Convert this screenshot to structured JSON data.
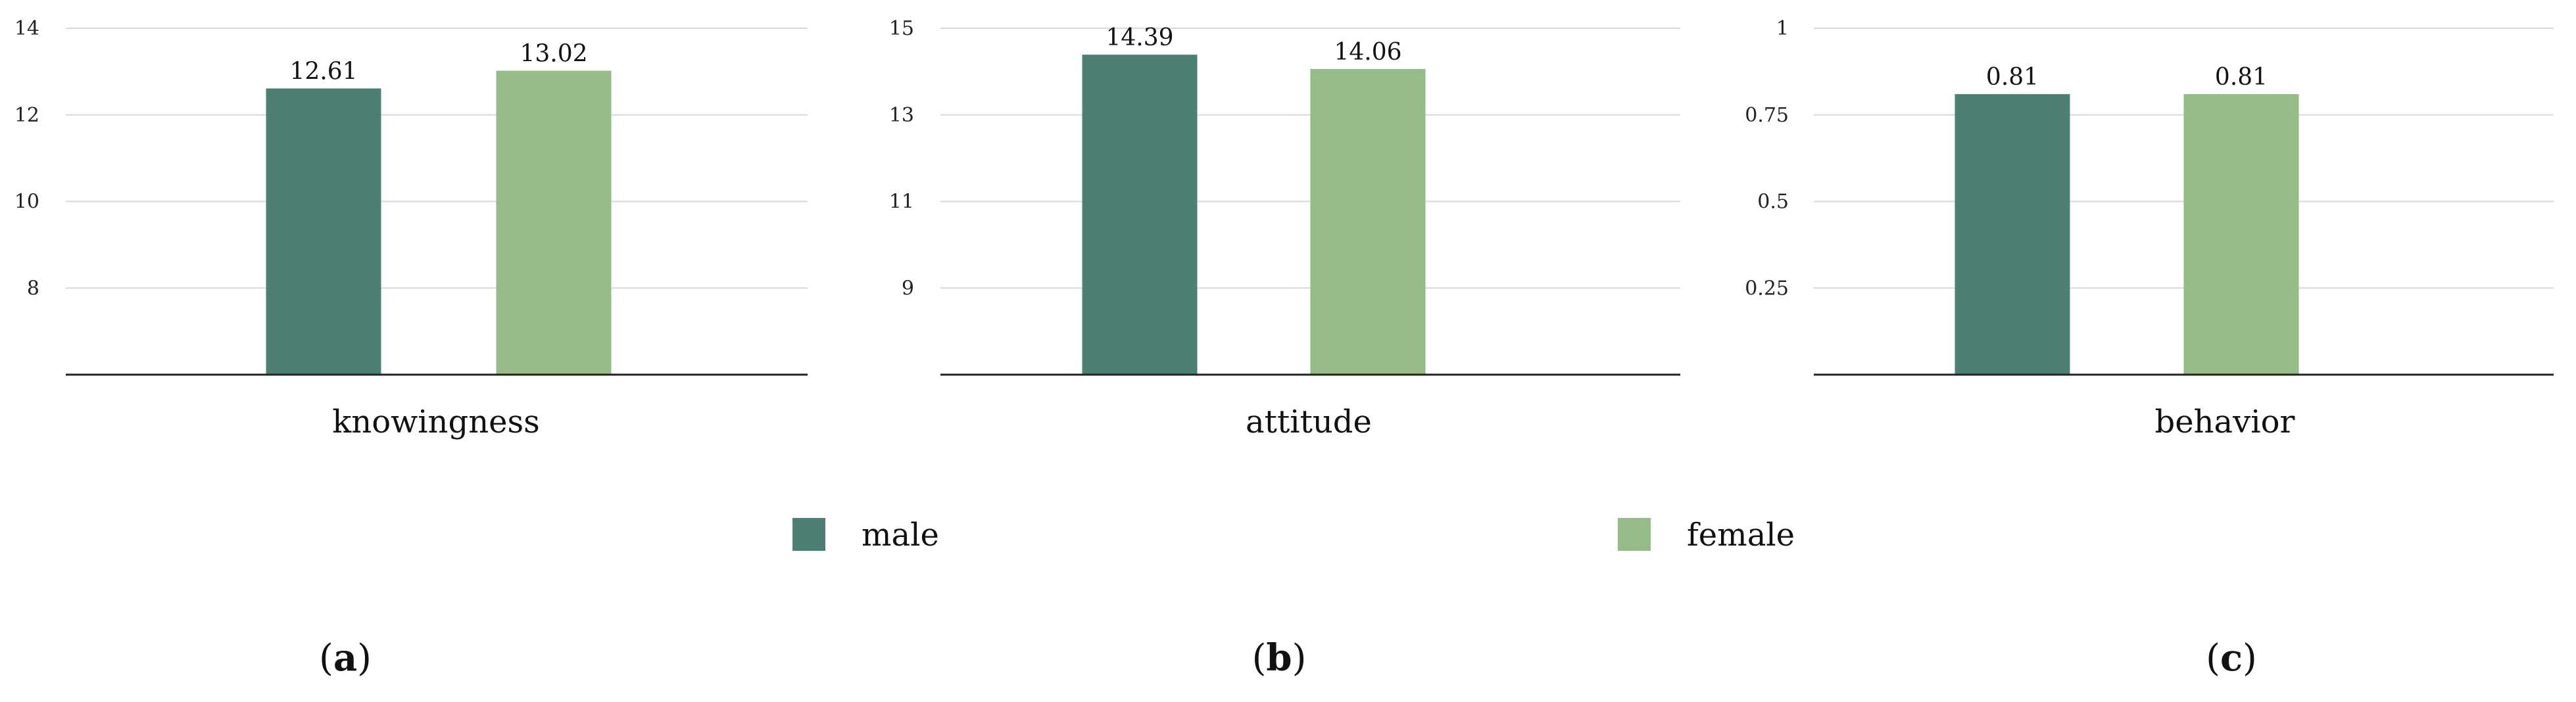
{
  "colors": {
    "male": "#4e7f75",
    "female": "#95bb86",
    "grid": "#d9d9d9",
    "axis": "#222222"
  },
  "legend": [
    {
      "name": "male",
      "color": "#4e7f75"
    },
    {
      "name": "female",
      "color": "#95bb86"
    }
  ],
  "panel_labels": [
    {
      "open": "(",
      "letter": "a",
      "close": ")"
    },
    {
      "open": "(",
      "letter": "b",
      "close": ")"
    },
    {
      "open": "(",
      "letter": "c",
      "close": ")"
    }
  ],
  "chart_data": [
    {
      "type": "bar",
      "xlabel": "knowingness",
      "categories": [
        "male",
        "female"
      ],
      "series": [
        {
          "values": [
            12.61,
            13.02
          ]
        }
      ],
      "data_labels": [
        "12.61",
        "13.02"
      ],
      "ylim": [
        6,
        14
      ],
      "yticks": [
        8,
        10,
        12,
        14
      ],
      "ytick_labels": [
        "8",
        "10",
        "12",
        "14"
      ],
      "grid": true
    },
    {
      "type": "bar",
      "xlabel": "attitude",
      "categories": [
        "male",
        "female"
      ],
      "series": [
        {
          "values": [
            14.39,
            14.06
          ]
        }
      ],
      "data_labels": [
        "14.39",
        "14.06"
      ],
      "ylim": [
        7,
        15
      ],
      "yticks": [
        9,
        11,
        13,
        15
      ],
      "ytick_labels": [
        "9",
        "11",
        "13",
        "15"
      ],
      "grid": true
    },
    {
      "type": "bar",
      "xlabel": "behavior",
      "categories": [
        "male",
        "female"
      ],
      "series": [
        {
          "values": [
            0.81,
            0.81
          ]
        }
      ],
      "data_labels": [
        "0.81",
        "0.81"
      ],
      "ylim": [
        0,
        1
      ],
      "yticks": [
        0.25,
        0.5,
        0.75,
        1
      ],
      "ytick_labels": [
        "0.25",
        "0.5",
        "0.75",
        "1"
      ],
      "grid": true
    }
  ]
}
